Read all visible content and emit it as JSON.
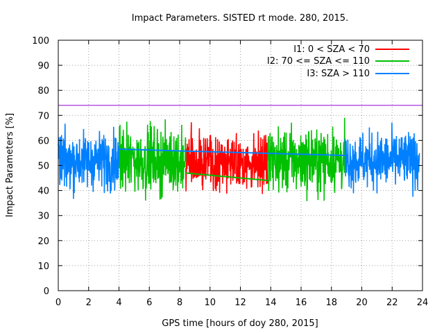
{
  "chart_data": {
    "type": "line",
    "title": "Impact Parameters. SISTED rt mode. 280, 2015.",
    "xlabel": "GPS time [hours of doy 280, 2015]",
    "ylabel": "Impact Parameters [%]",
    "xlim": [
      0,
      24
    ],
    "ylim": [
      0,
      100
    ],
    "xticks": [
      0,
      2,
      4,
      6,
      8,
      10,
      12,
      14,
      16,
      18,
      20,
      22,
      24
    ],
    "yticks": [
      0,
      10,
      20,
      30,
      40,
      50,
      60,
      70,
      80,
      90,
      100
    ],
    "grid": true,
    "legend_position": "top-right",
    "threshold": {
      "value": 74,
      "color": "#9400d3"
    },
    "series": [
      {
        "name": "I1: 0 < SZA < 70",
        "color": "#ff0000",
        "segments": [
          [
            8.4,
            13.8
          ]
        ],
        "center": 51,
        "noise_amplitude": 8,
        "trend": {
          "x": [
            8.4,
            13.8
          ],
          "y": [
            47,
            44
          ]
        }
      },
      {
        "name": "I2: 70 <= SZA <= 110",
        "color": "#00c000",
        "segments": [
          [
            4.0,
            8.4
          ],
          [
            13.8,
            18.9
          ]
        ],
        "center": 52,
        "noise_amplitude": 9,
        "trend": {
          "x": [
            8.4,
            13.8
          ],
          "y": [
            47,
            44
          ]
        }
      },
      {
        "name": "I3: SZA > 110",
        "color": "#0080ff",
        "segments": [
          [
            0,
            4.0
          ],
          [
            18.9,
            23.8
          ]
        ],
        "center": 52,
        "noise_amplitude": 8,
        "trend": {
          "x": [
            4.0,
            18.9
          ],
          "y": [
            56.5,
            54
          ]
        }
      }
    ]
  }
}
